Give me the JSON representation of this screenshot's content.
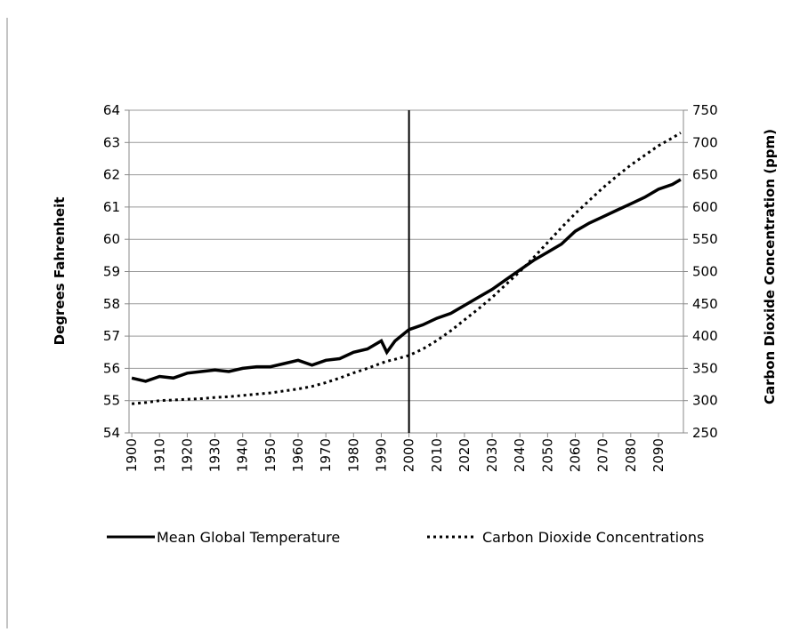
{
  "chart_data": {
    "type": "line",
    "y_label": "Degrees Fahrenheit",
    "y2_label": "Carbon Dioxide Concentration (ppm)",
    "x": [
      1900,
      1905,
      1910,
      1915,
      1920,
      1925,
      1930,
      1935,
      1940,
      1945,
      1950,
      1955,
      1960,
      1965,
      1970,
      1975,
      1980,
      1985,
      1990,
      1992,
      1995,
      2000,
      2005,
      2010,
      2015,
      2020,
      2025,
      2030,
      2035,
      2040,
      2045,
      2050,
      2055,
      2060,
      2065,
      2070,
      2075,
      2080,
      2085,
      2090,
      2095,
      2098
    ],
    "xlim": [
      1899,
      2099
    ],
    "xticks": [
      1900,
      1910,
      1920,
      1930,
      1940,
      1950,
      1960,
      1970,
      1980,
      1990,
      2000,
      2010,
      2020,
      2030,
      2040,
      2050,
      2060,
      2070,
      2080,
      2090
    ],
    "ylim": [
      54,
      64
    ],
    "yticks": [
      54,
      55,
      56,
      57,
      58,
      59,
      60,
      61,
      62,
      63,
      64
    ],
    "y2lim": [
      250,
      750
    ],
    "y2ticks": [
      250,
      300,
      350,
      400,
      450,
      500,
      550,
      600,
      650,
      700,
      750
    ],
    "grid": true,
    "marker_x": 2000,
    "legend": "bottom",
    "series": [
      {
        "name": "Mean Global Temperature",
        "color": "#000000",
        "style": "solid",
        "values": [
          55.7,
          55.6,
          55.75,
          55.7,
          55.85,
          55.9,
          55.95,
          55.9,
          56.0,
          56.05,
          56.05,
          56.15,
          56.25,
          56.1,
          56.25,
          56.3,
          56.5,
          56.6,
          56.85,
          56.5,
          56.85,
          57.2,
          57.35,
          57.55,
          57.7,
          57.95,
          58.2,
          58.45,
          58.75,
          59.05,
          59.35,
          59.6,
          59.85,
          60.25,
          60.5,
          60.7,
          60.9,
          61.1,
          61.3,
          61.55,
          61.7,
          61.85
        ]
      },
      {
        "name": "Carbon Dioxide Concentrations",
        "color": "#000000",
        "style": "dotted",
        "axis": "y2",
        "values": [
          295,
          297,
          300,
          301,
          302,
          303,
          305,
          306,
          308,
          310,
          312,
          315,
          318,
          322,
          328,
          335,
          343,
          350,
          358,
          361,
          364,
          370,
          380,
          393,
          408,
          425,
          442,
          460,
          480,
          500,
          522,
          545,
          568,
          590,
          610,
          630,
          648,
          665,
          680,
          695,
          707,
          715
        ]
      }
    ]
  }
}
